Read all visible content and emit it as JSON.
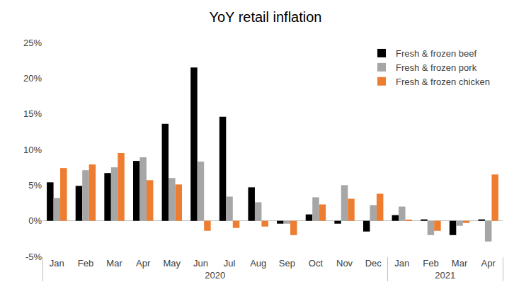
{
  "chart_data": {
    "type": "bar",
    "title": "YoY retail inflation",
    "categories": [
      "Jan",
      "Feb",
      "Mar",
      "Apr",
      "May",
      "Jun",
      "Jul",
      "Aug",
      "Sep",
      "Oct",
      "Nov",
      "Dec",
      "Jan",
      "Feb",
      "Mar",
      "Apr"
    ],
    "x_groups": [
      "2020",
      "2020",
      "2020",
      "2020",
      "2020",
      "2020",
      "2020",
      "2020",
      "2020",
      "2020",
      "2020",
      "2020",
      "2021",
      "2021",
      "2021",
      "2021"
    ],
    "series": [
      {
        "name": "Fresh & frozen beef",
        "color": "#000000",
        "values": [
          5.4,
          4.9,
          6.7,
          8.4,
          13.6,
          21.5,
          14.6,
          4.7,
          -0.4,
          0.9,
          -0.4,
          -1.5,
          0.8,
          0.2,
          -2.0,
          0.2
        ]
      },
      {
        "name": "Fresh & frozen pork",
        "color": "#a6a6a6",
        "values": [
          3.2,
          7.1,
          7.5,
          8.9,
          6.0,
          8.3,
          3.4,
          2.6,
          -0.4,
          3.3,
          5.0,
          2.2,
          2.0,
          -2.0,
          -0.7,
          -2.9
        ]
      },
      {
        "name": "Fresh & frozen chicken",
        "color": "#ed7d31",
        "values": [
          7.4,
          7.9,
          9.5,
          5.7,
          5.1,
          -1.4,
          -1.0,
          -0.8,
          -2.0,
          2.3,
          3.1,
          3.8,
          0.1,
          -1.4,
          -0.3,
          6.5
        ]
      }
    ],
    "ylim": [
      -5,
      25
    ],
    "yticks": [
      {
        "value": -5,
        "label": "-5%"
      },
      {
        "value": 0,
        "label": "0%"
      },
      {
        "value": 5,
        "label": "5%"
      },
      {
        "value": 10,
        "label": "10%"
      },
      {
        "value": 15,
        "label": "15%"
      },
      {
        "value": 20,
        "label": "20%"
      },
      {
        "value": 25,
        "label": "25%"
      }
    ],
    "grid": false,
    "legend": "top right"
  }
}
